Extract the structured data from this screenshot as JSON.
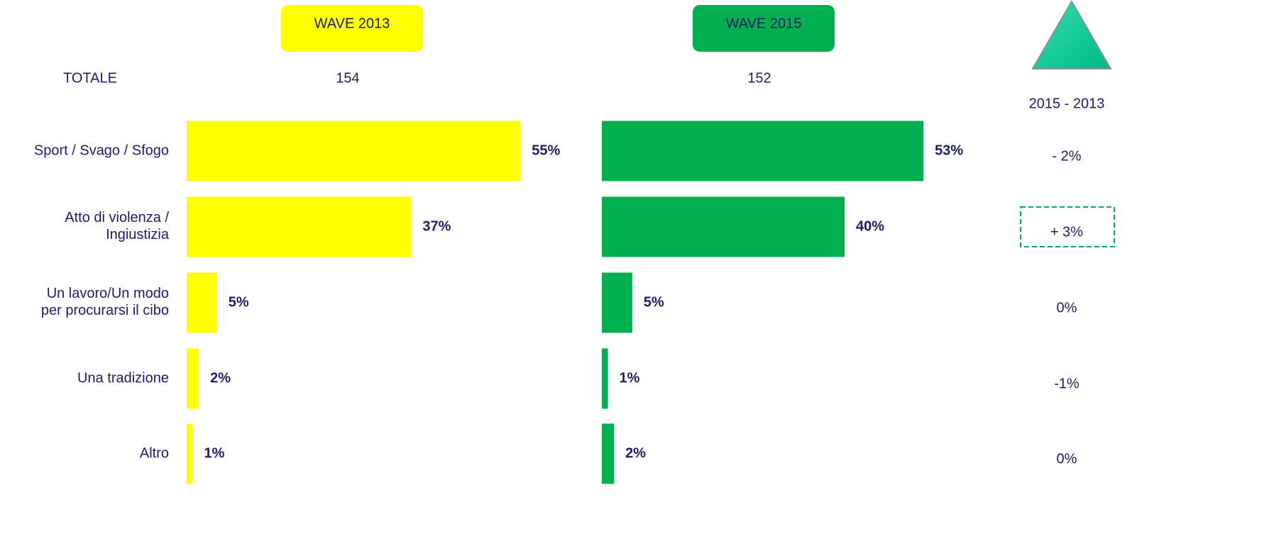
{
  "total_label": "TOTALE",
  "difference": {
    "title": "2015 - 2013",
    "values": [
      -2,
      3,
      0,
      -1,
      0
    ],
    "value_labels": [
      "- 2%",
      "+ 3%",
      "0%",
      "-1%",
      "0%"
    ],
    "highlight": 1
  },
  "chart_data": [
    {
      "type": "bar",
      "orientation": "horizontal",
      "title": "WAVE 2013",
      "base": 154,
      "color": "#ffff00",
      "categories": [
        "Sport / Svago / Sfogo",
        "Atto di violenza /\nIngiustizia",
        "Un lavoro/Un modo\nper procurarsi il cibo",
        "Una tradizione",
        "Altro"
      ],
      "values": [
        55,
        37,
        5,
        2,
        1
      ],
      "value_labels": [
        "55%",
        "37%",
        "5%",
        "2%",
        "1%"
      ]
    },
    {
      "type": "bar",
      "orientation": "horizontal",
      "title": "WAVE 2015",
      "base": 152,
      "color": "#00b050",
      "values": [
        53,
        40,
        5,
        1,
        2
      ],
      "value_labels": [
        "53%",
        "40%",
        "5%",
        "1%",
        "2%"
      ]
    }
  ]
}
